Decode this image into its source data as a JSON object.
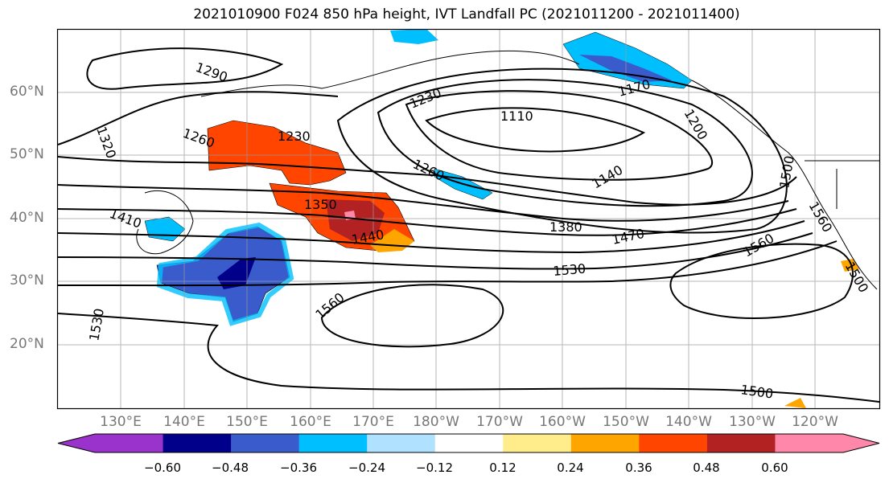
{
  "title": "2021010900 F024 850 hPa height, IVT Landfall PC (2021011200 - 2021011400)",
  "lat_labels": [
    "60°N",
    "50°N",
    "40°N",
    "30°N",
    "20°N"
  ],
  "lon_labels": [
    "130°E",
    "140°E",
    "150°E",
    "160°E",
    "170°E",
    "180°W",
    "170°W",
    "160°W",
    "150°W",
    "140°W",
    "130°W",
    "120°W"
  ],
  "contour_labels": [
    "1290",
    "1320",
    "1260",
    "1230",
    "1110",
    "1230",
    "1170",
    "1200",
    "1260",
    "1140",
    "1410",
    "1350",
    "1380",
    "1470",
    "1440",
    "1560",
    "1530",
    "1560",
    "1530",
    "1500",
    "1560",
    "1500",
    "1500"
  ],
  "colorbar": {
    "ticks": [
      "−0.60",
      "−0.48",
      "−0.36",
      "−0.24",
      "−0.12",
      "0.12",
      "0.24",
      "0.36",
      "0.48",
      "0.60"
    ],
    "colors": [
      "#9933cc",
      "#00008b",
      "#3a5bcc",
      "#00bfff",
      "#b0e2ff",
      "#ffffff",
      "#ffec8b",
      "#ffa500",
      "#ff4500",
      "#b22222",
      "#ff88aa"
    ]
  },
  "colors": {
    "positive_anomaly": "#ff4500",
    "negative_anomaly": "#00bfff",
    "contour": "#000000",
    "grid": "#999999"
  }
}
